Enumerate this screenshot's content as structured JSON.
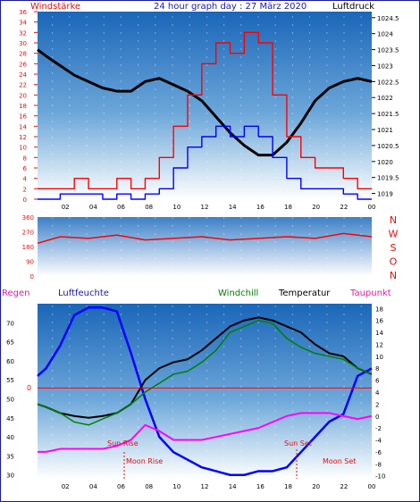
{
  "header": {
    "left_label": "Windstärke",
    "title": "24 hour graph day : 27 März 2020",
    "right_label": "Luftdruck"
  },
  "panel2": {
    "direction_letters": [
      "N",
      "W",
      "S",
      "O",
      "N"
    ]
  },
  "panel3": {
    "labels": {
      "regen": "Regen",
      "luftfeuchte": "Luftfeuchte",
      "windchill": "Windchill",
      "temperatur": "Temperatur",
      "taupunkt": "Taupunkt"
    },
    "events": {
      "sun_rise": "Sun Rise",
      "moon_rise": "Moon Rise",
      "sun_set": "Sun Set",
      "moon_set": "Moon Set"
    },
    "zero_mark": "0"
  },
  "colors": {
    "wind_gust": "#ff0000",
    "wind_avg": "#0000ff",
    "pressure": "#000000",
    "direction": "#ff0000",
    "humidity": "#0000ff",
    "windchill": "#008000",
    "temperature": "#000000",
    "dewpoint": "#ff00ff",
    "rain": "#ff0000",
    "sky_top": "#1a66b8",
    "sky_bottom": "#ffffff"
  },
  "chart_data": [
    {
      "type": "line",
      "name": "wind_pressure",
      "x_ticks": [
        "02",
        "04",
        "06",
        "08",
        "10",
        "12",
        "14",
        "16",
        "18",
        "20",
        "22",
        "00"
      ],
      "x_range_hours": [
        0.4,
        24
      ],
      "left_axis": {
        "label": "Windstärke",
        "ticks": [
          0,
          2,
          4,
          6,
          8,
          10,
          12,
          14,
          16,
          18,
          20,
          22,
          24,
          26,
          28,
          30,
          32,
          34,
          36
        ],
        "range": [
          0,
          36
        ]
      },
      "right_axis": {
        "label": "Luftdruck",
        "ticks": [
          1019,
          1019.5,
          1020,
          1020.5,
          1021,
          1021.5,
          1022,
          1022.5,
          1023,
          1023.5,
          1024,
          1024.5
        ],
        "range": [
          1018.82,
          1024.69
        ]
      },
      "series": [
        {
          "name": "Luftdruck",
          "axis": "right",
          "x": [
            0.4,
            1,
            2,
            3,
            4,
            5,
            6,
            7,
            8,
            9,
            10,
            11,
            12,
            13,
            14,
            15,
            16,
            17,
            18,
            19,
            20,
            21,
            22,
            23,
            24
          ],
          "y": [
            1023.5,
            1023.3,
            1023.0,
            1022.7,
            1022.5,
            1022.3,
            1022.2,
            1022.2,
            1022.5,
            1022.6,
            1022.4,
            1022.2,
            1021.9,
            1021.4,
            1020.9,
            1020.5,
            1020.2,
            1020.2,
            1020.6,
            1021.2,
            1021.9,
            1022.3,
            1022.5,
            1022.6,
            1022.5
          ]
        },
        {
          "name": "Windstärke (Böen)",
          "axis": "left",
          "x": [
            0.4,
            1,
            2,
            3,
            4,
            5,
            6,
            7,
            8,
            9,
            10,
            11,
            12,
            13,
            14,
            15,
            16,
            17,
            18,
            19,
            20,
            21,
            22,
            23,
            24
          ],
          "y": [
            2,
            2,
            2,
            4,
            2,
            2,
            4,
            2,
            4,
            8,
            14,
            20,
            26,
            30,
            28,
            32,
            30,
            20,
            12,
            8,
            6,
            6,
            4,
            2,
            2
          ]
        },
        {
          "name": "Windstärke (Mittel)",
          "axis": "left",
          "x": [
            0.4,
            1,
            2,
            3,
            4,
            5,
            6,
            7,
            8,
            9,
            10,
            11,
            12,
            13,
            14,
            15,
            16,
            17,
            18,
            19,
            20,
            21,
            22,
            23,
            24
          ],
          "y": [
            0,
            0,
            1,
            1,
            1,
            0,
            1,
            0,
            1,
            2,
            6,
            10,
            12,
            14,
            12,
            14,
            12,
            8,
            4,
            2,
            2,
            2,
            1,
            0,
            0
          ]
        }
      ]
    },
    {
      "type": "line",
      "name": "wind_direction",
      "y_axis": {
        "ticks": [
          0,
          90,
          180,
          270,
          360
        ],
        "range": [
          0,
          360
        ]
      },
      "x_range_hours": [
        0.4,
        24
      ],
      "series": [
        {
          "name": "Windrichtung",
          "x": [
            0.4,
            2,
            4,
            6,
            8,
            10,
            12,
            14,
            16,
            18,
            20,
            22,
            24
          ],
          "y": [
            200,
            240,
            230,
            250,
            220,
            230,
            240,
            220,
            230,
            240,
            230,
            260,
            240
          ]
        }
      ]
    },
    {
      "type": "line",
      "name": "temperature_humidity",
      "x_ticks": [
        "02",
        "04",
        "06",
        "08",
        "10",
        "12",
        "14",
        "16",
        "18",
        "20",
        "22",
        "00"
      ],
      "x_range_hours": [
        0.4,
        24
      ],
      "left_axis": {
        "label": "Luftfeuchte",
        "ticks": [
          30,
          35,
          40,
          45,
          50,
          55,
          60,
          65,
          70
        ],
        "range": [
          29,
          75
        ]
      },
      "right_axis": {
        "label": "Temperatur",
        "ticks": [
          -10,
          -8,
          -6,
          -4,
          -2,
          0,
          2,
          4,
          6,
          8,
          10,
          12,
          14,
          16,
          18
        ],
        "range": [
          -10.5,
          18.8
        ]
      },
      "series": [
        {
          "name": "Luftfeuchte",
          "axis": "left",
          "x": [
            0.4,
            1,
            2,
            3,
            4,
            5,
            6,
            7,
            8,
            9,
            10,
            11,
            12,
            13,
            14,
            15,
            16,
            17,
            18,
            19,
            20,
            21,
            22,
            23,
            24
          ],
          "y": [
            56,
            58,
            64,
            72,
            74,
            74,
            73,
            62,
            50,
            40,
            36,
            34,
            32,
            31,
            30,
            30,
            31,
            31,
            32,
            36,
            40,
            44,
            46,
            56,
            58
          ]
        },
        {
          "name": "Temperatur",
          "axis": "right",
          "x": [
            0.4,
            1,
            2,
            3,
            4,
            5,
            6,
            7,
            8,
            9,
            10,
            11,
            12,
            13,
            14,
            15,
            16,
            17,
            18,
            19,
            20,
            21,
            22,
            23,
            24
          ],
          "y": [
            2,
            1.5,
            0.5,
            0,
            -0.3,
            0,
            0.5,
            2,
            6,
            8,
            9,
            9.5,
            11,
            13,
            15,
            16,
            16.5,
            16,
            15,
            14,
            12,
            10.5,
            10,
            8,
            7
          ]
        },
        {
          "name": "Windchill",
          "axis": "right",
          "x": [
            0.4,
            1,
            2,
            3,
            4,
            5,
            6,
            7,
            8,
            9,
            10,
            11,
            12,
            13,
            14,
            15,
            16,
            17,
            18,
            19,
            20,
            21,
            22,
            23,
            24
          ],
          "y": [
            2,
            1.5,
            0.5,
            -1,
            -1.5,
            -0.5,
            0.5,
            2,
            4,
            5.5,
            7,
            7.5,
            9,
            11,
            14,
            15,
            16,
            15.5,
            13,
            11.5,
            10.5,
            10,
            9.5,
            8,
            7
          ]
        },
        {
          "name": "Taupunkt",
          "axis": "right",
          "x": [
            0.4,
            1,
            2,
            3,
            4,
            5,
            6,
            7,
            8,
            9,
            10,
            11,
            12,
            13,
            14,
            15,
            16,
            17,
            18,
            19,
            20,
            21,
            22,
            23,
            24
          ],
          "y": [
            -6,
            -6,
            -5.5,
            -5.5,
            -5.5,
            -5.5,
            -5,
            -4,
            -1.5,
            -2.5,
            -4,
            -4,
            -4,
            -3.5,
            -3,
            -2.5,
            -2,
            -1,
            0,
            0.5,
            0.5,
            0.5,
            0,
            -0.5,
            0
          ]
        },
        {
          "name": "Regen",
          "axis": "right",
          "x": [
            0.4,
            24
          ],
          "y": [
            4.7,
            4.7
          ]
        }
      ]
    }
  ]
}
